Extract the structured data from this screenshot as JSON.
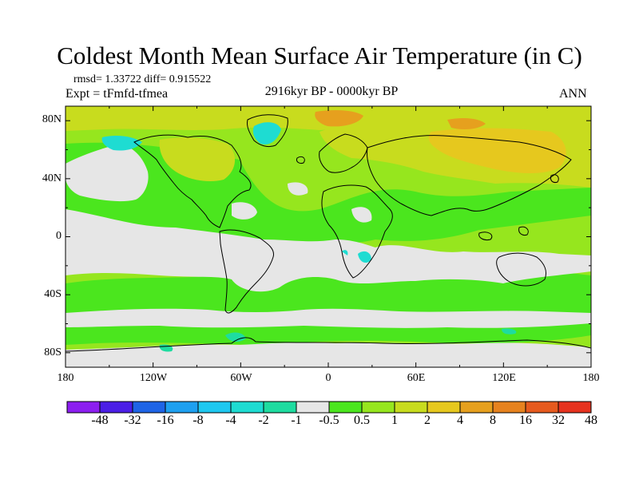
{
  "title": "Coldest Month Mean Surface Air Temperature (in C)",
  "stats": "rmsd= 1.33722 diff= 0.915522",
  "expt": "Expt = tFmfd-tfmea",
  "period": "2916kyr BP - 0000kyr BP",
  "season": "ANN",
  "lat_labels": [
    "80N",
    "40N",
    "0",
    "40S",
    "80S"
  ],
  "lon_labels": [
    "180",
    "120W",
    "60W",
    "0",
    "60E",
    "120E",
    "180"
  ],
  "colorbar": {
    "colors": [
      "#8c1ef0",
      "#4b1ee6",
      "#1e64e6",
      "#1ea0f0",
      "#1ec8f0",
      "#1edcd2",
      "#1edca0",
      "#e6e6e6",
      "#4be61e",
      "#96e61e",
      "#c8dc1e",
      "#e6c81e",
      "#e6a01e",
      "#e6821e",
      "#e65a1e",
      "#e6321e"
    ],
    "labels": [
      "-48",
      "-32",
      "-16",
      "-8",
      "-4",
      "-2",
      "-1",
      "-0.5",
      "0.5",
      "1",
      "2",
      "4",
      "8",
      "16",
      "32",
      "48"
    ]
  },
  "map_colors": {
    "base": "#96e61e",
    "neutral": "#e6e6e6",
    "green": "#4be61e",
    "yellow": "#c8dc1e",
    "orange": "#e6c81e",
    "deep_orange": "#e6a01e",
    "cyan": "#1edcd2",
    "teal": "#1edca0",
    "coast": "#000000"
  }
}
